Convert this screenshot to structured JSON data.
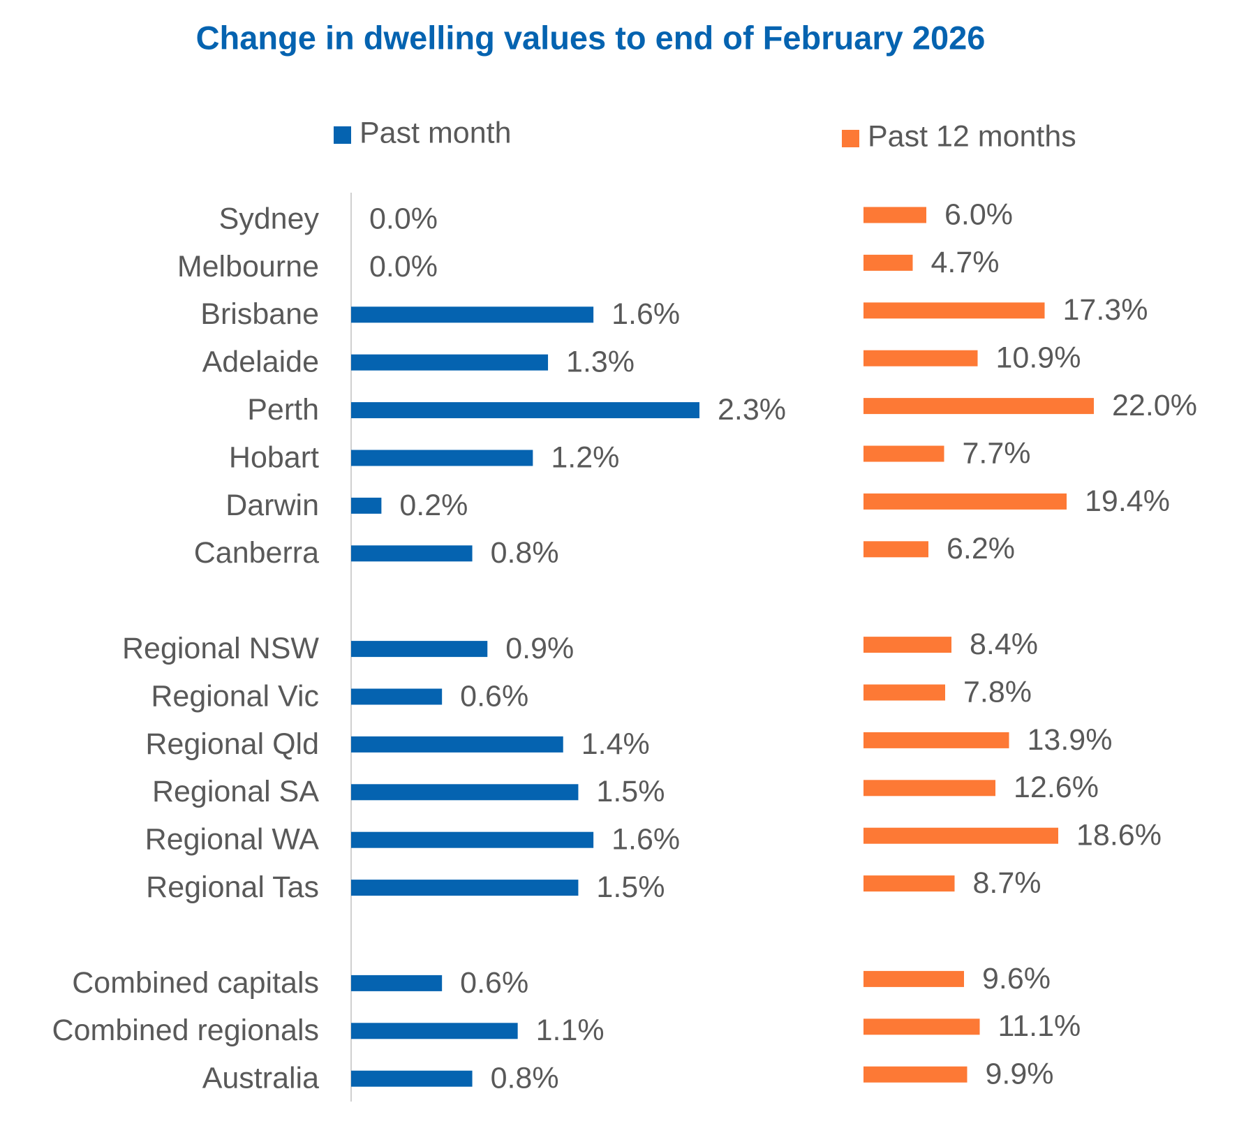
{
  "title": "Change in dwelling values to end of February 2026",
  "chart_data": [
    {
      "type": "bar",
      "orientation": "horizontal",
      "series": [
        {
          "name": "Past month",
          "color": "#0563b0",
          "values": [
            0.0,
            0.0,
            1.6,
            1.3,
            2.3,
            1.2,
            0.2,
            0.8,
            null,
            0.9,
            0.6,
            1.4,
            1.5,
            1.6,
            1.5,
            null,
            0.6,
            1.1,
            0.8
          ],
          "value_labels": [
            "0.0%",
            "0.0%",
            "1.6%",
            "1.3%",
            "2.3%",
            "1.2%",
            "0.2%",
            "0.8%",
            null,
            "0.9%",
            "0.6%",
            "1.4%",
            "1.5%",
            "1.6%",
            "1.5%",
            null,
            "0.6%",
            "1.1%",
            "0.8%"
          ]
        }
      ],
      "categories": [
        "Sydney",
        "Melbourne",
        "Brisbane",
        "Adelaide",
        "Perth",
        "Hobart",
        "Darwin",
        "Canberra",
        null,
        "Regional NSW",
        "Regional Vic",
        "Regional Qld",
        "Regional SA",
        "Regional WA",
        "Regional Tas",
        null,
        "Combined capitals",
        "Combined regionals",
        "Australia"
      ],
      "xlim": [
        0,
        2.3
      ]
    },
    {
      "type": "bar",
      "orientation": "horizontal",
      "series": [
        {
          "name": "Past 12 months",
          "color": "#fd7935",
          "values": [
            6.0,
            4.7,
            17.3,
            10.9,
            22.0,
            7.7,
            19.4,
            6.2,
            null,
            8.4,
            7.8,
            13.9,
            12.6,
            18.6,
            8.7,
            null,
            9.6,
            11.1,
            9.9
          ],
          "value_labels": [
            "6.0%",
            "4.7%",
            "17.3%",
            "10.9%",
            "22.0%",
            "7.7%",
            "19.4%",
            "6.2%",
            null,
            "8.4%",
            "7.8%",
            "13.9%",
            "12.6%",
            "18.6%",
            "8.7%",
            null,
            "9.6%",
            "11.1%",
            "9.9%"
          ]
        }
      ],
      "xlim": [
        0,
        22
      ]
    }
  ]
}
